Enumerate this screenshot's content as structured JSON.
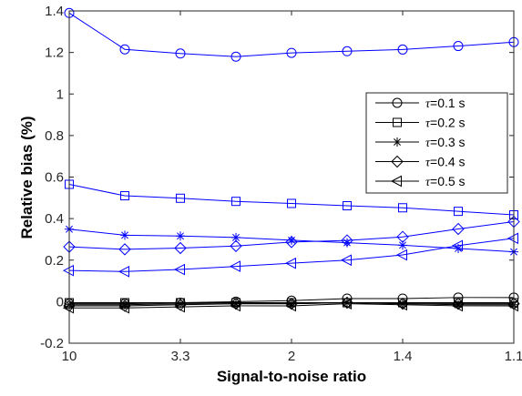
{
  "chart_data": {
    "type": "line",
    "xlabel": "Signal-to-noise ratio",
    "ylabel": "Relative bias (%)",
    "x_tick_labels": [
      "10",
      "3.3",
      "2",
      "1.4",
      "1.1"
    ],
    "ylim": [
      -0.2,
      1.4
    ],
    "y_ticks": [
      "-0.2",
      "0",
      "0.2",
      "0.4",
      "0.6",
      "0.8",
      "1",
      "1.2",
      "1.4"
    ],
    "legend_position": "right-middle",
    "series": [
      {
        "name": "τ=0.1 s",
        "tau": "τ",
        "rest": "=0.1 s",
        "marker": "circle",
        "color": "#0000ff",
        "values": [
          1.39,
          1.215,
          1.195,
          1.18,
          1.198,
          1.206,
          1.214,
          1.231,
          1.25
        ]
      },
      {
        "name": "τ=0.2 s",
        "tau": "τ",
        "rest": "=0.2 s",
        "marker": "square",
        "color": "#0000ff",
        "values": [
          0.565,
          0.51,
          0.498,
          0.483,
          0.473,
          0.462,
          0.452,
          0.435,
          0.418
        ]
      },
      {
        "name": "τ=0.3 s",
        "tau": "τ",
        "rest": "=0.3 s",
        "marker": "asterisk",
        "color": "#0000ff",
        "values": [
          0.349,
          0.32,
          0.316,
          0.309,
          0.296,
          0.284,
          0.272,
          0.256,
          0.24
        ]
      },
      {
        "name": "τ=0.4 s",
        "tau": "τ",
        "rest": "=0.4 s",
        "marker": "diamond",
        "color": "#0000ff",
        "values": [
          0.264,
          0.252,
          0.258,
          0.268,
          0.287,
          0.295,
          0.312,
          0.35,
          0.385
        ]
      },
      {
        "name": "τ=0.5 s",
        "tau": "τ",
        "rest": "=0.5 s",
        "marker": "triangle-left",
        "color": "#0000ff",
        "values": [
          0.15,
          0.145,
          0.155,
          0.17,
          0.185,
          0.2,
          0.225,
          0.27,
          0.305
        ]
      },
      {
        "marker": "circle",
        "color": "#000000",
        "values": [
          -0.01,
          -0.01,
          -0.005,
          0.0,
          0.005,
          0.015,
          0.015,
          0.02,
          0.02
        ]
      },
      {
        "marker": "square",
        "color": "#000000",
        "values": [
          -0.005,
          -0.005,
          -0.005,
          -0.005,
          -0.005,
          -0.005,
          -0.005,
          -0.005,
          -0.005
        ]
      },
      {
        "marker": "asterisk",
        "color": "#000000",
        "values": [
          -0.015,
          -0.015,
          -0.01,
          -0.01,
          -0.01,
          -0.005,
          -0.01,
          -0.015,
          -0.015
        ]
      },
      {
        "marker": "diamond",
        "color": "#000000",
        "values": [
          -0.02,
          -0.02,
          -0.015,
          -0.01,
          -0.01,
          -0.005,
          -0.01,
          -0.01,
          -0.01
        ]
      },
      {
        "marker": "triangle-left",
        "color": "#000000",
        "values": [
          -0.03,
          -0.03,
          -0.025,
          -0.02,
          -0.02,
          -0.01,
          -0.015,
          -0.02,
          -0.02
        ]
      }
    ]
  }
}
